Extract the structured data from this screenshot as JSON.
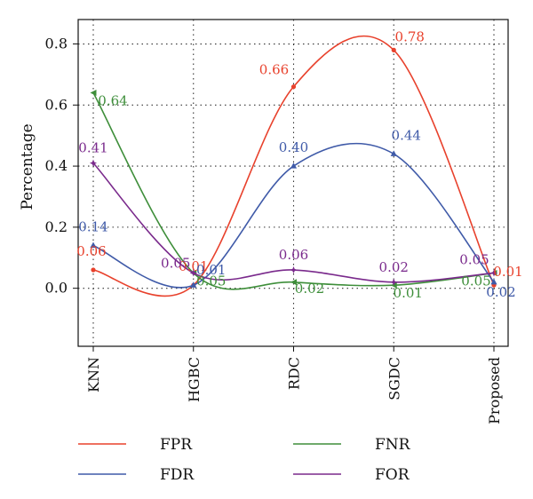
{
  "chart_data": {
    "type": "line",
    "ylabel": "Percentage",
    "xlabel": "",
    "categories": [
      "KNN",
      "HGBC",
      "RDC",
      "SGDC",
      "Proposed"
    ],
    "y_ticks": [
      "0.0",
      "0.2",
      "0.4",
      "0.6",
      "0.8"
    ],
    "ylim": [
      -0.19,
      0.88
    ],
    "grid": true,
    "smooth": true,
    "series": [
      {
        "name": "FPR",
        "color": "#e8412c",
        "values": [
          0.06,
          0.01,
          0.66,
          0.78,
          0.01
        ],
        "labels": [
          "0.06",
          "0.01",
          "0.66",
          "0.78",
          "0.01"
        ]
      },
      {
        "name": "FNR",
        "color": "#3e8e3a",
        "values": [
          0.64,
          0.05,
          0.02,
          0.01,
          0.05
        ],
        "labels": [
          "0.64",
          "0.05",
          "0.02",
          "0.01",
          "0.05"
        ]
      },
      {
        "name": "FDR",
        "color": "#3f5aa8",
        "values": [
          0.14,
          0.01,
          0.4,
          0.44,
          0.02
        ],
        "labels": [
          "0.14",
          "0.01",
          "0.40",
          "0.44",
          "0.02"
        ]
      },
      {
        "name": "FOR",
        "color": "#7a2a8c",
        "values": [
          0.41,
          0.05,
          0.06,
          0.02,
          0.05
        ],
        "labels": [
          "0.41",
          "0.05",
          "0.06",
          "0.02",
          "0.05"
        ]
      }
    ],
    "legend": {
      "placement": "bottom",
      "entries": [
        {
          "name": "FPR",
          "color": "#e8412c"
        },
        {
          "name": "FNR",
          "color": "#3e8e3a"
        },
        {
          "name": "FDR",
          "color": "#3f5aa8"
        },
        {
          "name": "FOR",
          "color": "#7a2a8c"
        }
      ]
    }
  }
}
